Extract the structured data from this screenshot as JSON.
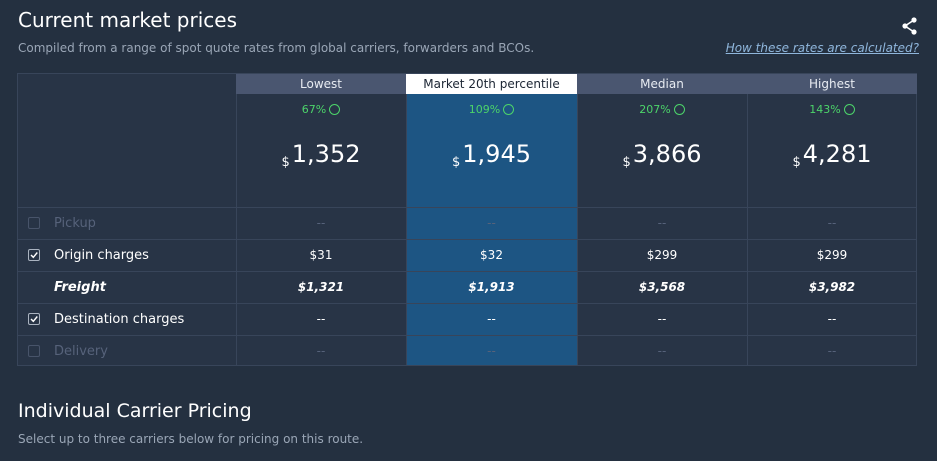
{
  "header": {
    "title": "Current market prices",
    "subtitle": "Compiled from a range of spot quote rates from global carriers, forwarders and BCOs.",
    "link": "How these rates are calculated?"
  },
  "table": {
    "highlight": 1,
    "columns": [
      {
        "label": "Lowest",
        "change": "67%",
        "currency": "$",
        "price": "1,352"
      },
      {
        "label": "Market 20th percentile",
        "change": "109%",
        "currency": "$",
        "price": "1,945"
      },
      {
        "label": "Median",
        "change": "207%",
        "currency": "$",
        "price": "3,866"
      },
      {
        "label": "Highest",
        "change": "143%",
        "currency": "$",
        "price": "4,281"
      }
    ],
    "rows": [
      {
        "label": "Pickup",
        "checkbox": true,
        "checked": false,
        "disabled": true,
        "bold": false,
        "values": [
          "--",
          "--",
          "--",
          "--"
        ]
      },
      {
        "label": "Origin charges",
        "checkbox": true,
        "checked": true,
        "disabled": false,
        "bold": false,
        "values": [
          "$31",
          "$32",
          "$299",
          "$299"
        ]
      },
      {
        "label": "Freight",
        "checkbox": false,
        "checked": false,
        "disabled": false,
        "bold": true,
        "values": [
          "$1,321",
          "$1,913",
          "$3,568",
          "$3,982"
        ]
      },
      {
        "label": "Destination charges",
        "checkbox": true,
        "checked": true,
        "disabled": false,
        "bold": false,
        "values": [
          "--",
          "--",
          "--",
          "--"
        ]
      },
      {
        "label": "Delivery",
        "checkbox": true,
        "checked": false,
        "disabled": true,
        "bold": false,
        "values": [
          "--",
          "--",
          "--",
          "--"
        ]
      }
    ]
  },
  "section": {
    "title": "Individual Carrier Pricing",
    "subtitle": "Select up to three carriers below for pricing on this route."
  }
}
